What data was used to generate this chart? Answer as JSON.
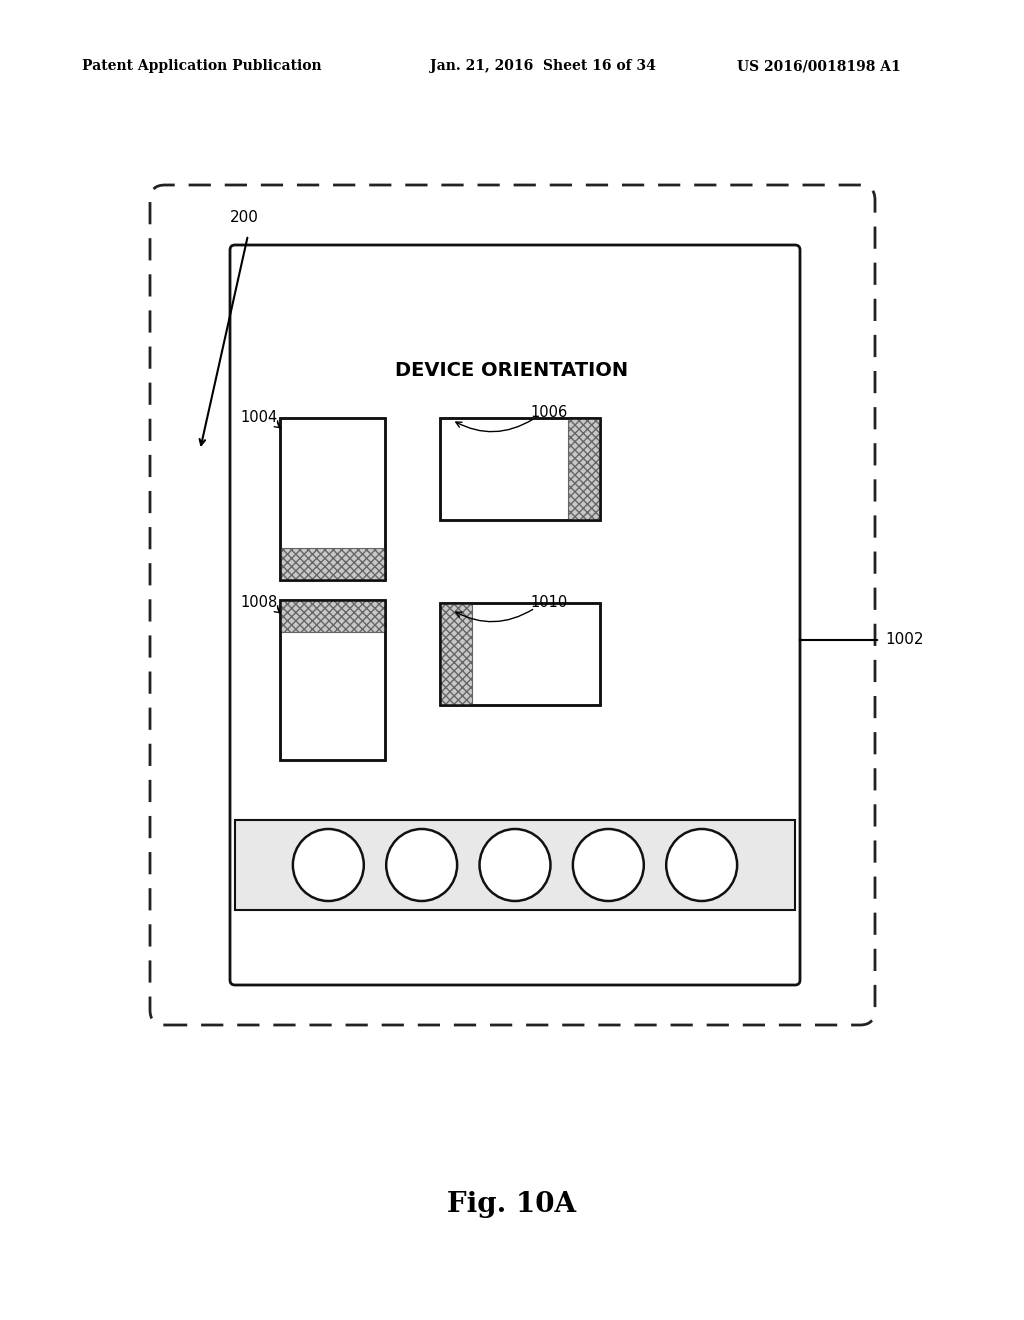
{
  "bg_color": "#ffffff",
  "header_left": "Patent Application Publication",
  "header_mid": "Jan. 21, 2016  Sheet 16 of 34",
  "header_right": "US 2016/0018198 A1",
  "fig_label": "Fig. 10A",
  "label_200": "200",
  "label_1002": "1002",
  "label_1004": "1004",
  "label_1006": "1006",
  "label_1008": "1008",
  "label_1010": "1010",
  "device_title": "DEVICE ORIENTATION"
}
